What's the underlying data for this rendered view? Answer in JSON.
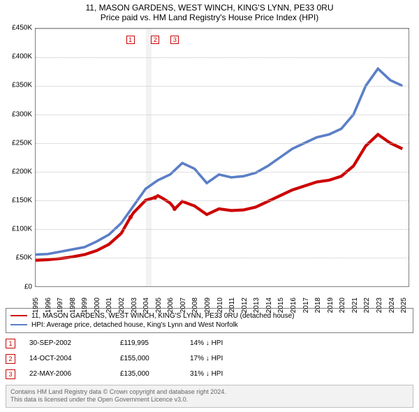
{
  "titles": {
    "main": "11, MASON GARDENS, WEST WINCH, KING'S LYNN, PE33 0RU",
    "sub": "Price paid vs. HM Land Registry's House Price Index (HPI)"
  },
  "chart": {
    "type": "line",
    "x_domain": [
      1995,
      2025.5
    ],
    "y_domain": [
      0,
      450000
    ],
    "y_ticks": [
      0,
      50000,
      100000,
      150000,
      200000,
      250000,
      300000,
      350000,
      400000,
      450000
    ],
    "y_tick_labels": [
      "£0",
      "£50K",
      "£100K",
      "£150K",
      "£200K",
      "£250K",
      "£300K",
      "£350K",
      "£400K",
      "£450K"
    ],
    "x_ticks": [
      1995,
      1996,
      1997,
      1998,
      1999,
      2000,
      2001,
      2002,
      2003,
      2004,
      2005,
      2006,
      2007,
      2008,
      2009,
      2010,
      2011,
      2012,
      2013,
      2014,
      2015,
      2016,
      2017,
      2018,
      2019,
      2020,
      2021,
      2022,
      2023,
      2024,
      2025
    ],
    "x_tick_labels": [
      "1995",
      "1996",
      "1997",
      "1998",
      "1999",
      "2000",
      "2001",
      "2002",
      "2003",
      "2004",
      "2005",
      "2006",
      "2007",
      "2008",
      "2009",
      "2010",
      "2011",
      "2012",
      "2013",
      "2014",
      "2015",
      "2016",
      "2017",
      "2018",
      "2019",
      "2020",
      "2021",
      "2022",
      "2023",
      "2024",
      "2025"
    ],
    "grid_color": "#bfbfbf",
    "axis_color": "#808080",
    "background_color": "#ffffff",
    "tick_fontsize": 10,
    "title_fontsize": 12,
    "label_color": "#000000",
    "y_tick_prefix": "£",
    "series": [
      {
        "name": "hpi",
        "label": "HPI: Average price, detached house, King's Lynn and West Norfolk",
        "color": "#5b7fc7",
        "line_width": 1.2,
        "data": [
          [
            1995,
            55000
          ],
          [
            1996,
            56000
          ],
          [
            1997,
            60000
          ],
          [
            1998,
            64000
          ],
          [
            1999,
            68000
          ],
          [
            2000,
            78000
          ],
          [
            2001,
            90000
          ],
          [
            2002,
            110000
          ],
          [
            2003,
            140000
          ],
          [
            2004,
            170000
          ],
          [
            2005,
            185000
          ],
          [
            2006,
            195000
          ],
          [
            2007,
            215000
          ],
          [
            2008,
            205000
          ],
          [
            2009,
            180000
          ],
          [
            2010,
            195000
          ],
          [
            2011,
            190000
          ],
          [
            2012,
            192000
          ],
          [
            2013,
            198000
          ],
          [
            2014,
            210000
          ],
          [
            2015,
            225000
          ],
          [
            2016,
            240000
          ],
          [
            2017,
            250000
          ],
          [
            2018,
            260000
          ],
          [
            2019,
            265000
          ],
          [
            2020,
            275000
          ],
          [
            2021,
            300000
          ],
          [
            2022,
            350000
          ],
          [
            2023,
            380000
          ],
          [
            2024,
            360000
          ],
          [
            2025,
            350000
          ]
        ]
      },
      {
        "name": "property",
        "label": "11, MASON GARDENS, WEST WINCH, KING'S LYNN, PE33 0RU (detached house)",
        "color": "#cc0000",
        "line_width": 1.4,
        "data": [
          [
            1995,
            45000
          ],
          [
            1996,
            46000
          ],
          [
            1997,
            48000
          ],
          [
            1998,
            51000
          ],
          [
            1999,
            55000
          ],
          [
            2000,
            62000
          ],
          [
            2001,
            73000
          ],
          [
            2002,
            92000
          ],
          [
            2002.75,
            119995
          ],
          [
            2003,
            128000
          ],
          [
            2004,
            150000
          ],
          [
            2004.79,
            155000
          ],
          [
            2005,
            158000
          ],
          [
            2005.5,
            152000
          ],
          [
            2006,
            145000
          ],
          [
            2006.39,
            135000
          ],
          [
            2007,
            148000
          ],
          [
            2008,
            140000
          ],
          [
            2009,
            125000
          ],
          [
            2010,
            135000
          ],
          [
            2011,
            132000
          ],
          [
            2012,
            133000
          ],
          [
            2013,
            138000
          ],
          [
            2014,
            148000
          ],
          [
            2015,
            158000
          ],
          [
            2016,
            168000
          ],
          [
            2017,
            175000
          ],
          [
            2018,
            182000
          ],
          [
            2019,
            185000
          ],
          [
            2020,
            192000
          ],
          [
            2021,
            210000
          ],
          [
            2022,
            245000
          ],
          [
            2023,
            265000
          ],
          [
            2024,
            250000
          ],
          [
            2025,
            240000
          ]
        ]
      }
    ],
    "light_bands": [
      {
        "x_start": 2004.0,
        "x_end": 2004.5
      }
    ],
    "sale_markers": [
      {
        "n": "1",
        "x": 2002.75,
        "y": 119995,
        "label_y": 430000,
        "color": "#cc0000"
      },
      {
        "n": "2",
        "x": 2004.79,
        "y": 155000,
        "label_y": 430000,
        "color": "#cc0000"
      },
      {
        "n": "3",
        "x": 2006.39,
        "y": 135000,
        "label_y": 430000,
        "color": "#cc0000"
      }
    ]
  },
  "legend": {
    "items": [
      {
        "color": "#cc0000",
        "label": "11, MASON GARDENS, WEST WINCH, KING'S LYNN, PE33 0RU (detached house)"
      },
      {
        "color": "#5b7fc7",
        "label": "HPI: Average price, detached house, King's Lynn and West Norfolk"
      }
    ]
  },
  "sales": [
    {
      "n": "1",
      "date": "30-SEP-2002",
      "price": "£119,995",
      "delta": "14% ↓ HPI",
      "color": "#cc0000"
    },
    {
      "n": "2",
      "date": "14-OCT-2004",
      "price": "£155,000",
      "delta": "17% ↓ HPI",
      "color": "#cc0000"
    },
    {
      "n": "3",
      "date": "22-MAY-2006",
      "price": "£135,000",
      "delta": "31% ↓ HPI",
      "color": "#cc0000"
    }
  ],
  "footer": {
    "line1": "Contains HM Land Registry data © Crown copyright and database right 2024.",
    "line2": "This data is licensed under the Open Government Licence v3.0."
  }
}
